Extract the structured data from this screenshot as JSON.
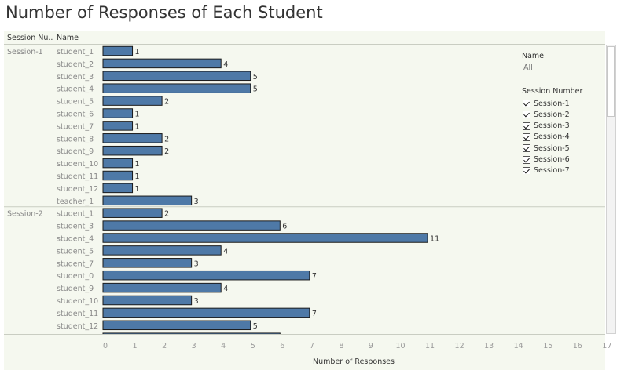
{
  "page": {
    "title": "Number of Responses of Each Student"
  },
  "headers": {
    "session": "Session Nu..",
    "name": "Name"
  },
  "filters": {
    "name_title": "Name",
    "name_value": "All",
    "session_title": "Session Number",
    "sessions": [
      {
        "label": "Session-1",
        "checked": true
      },
      {
        "label": "Session-2",
        "checked": true
      },
      {
        "label": "Session-3",
        "checked": true
      },
      {
        "label": "Session-4",
        "checked": true
      },
      {
        "label": "Session-5",
        "checked": true
      },
      {
        "label": "Session-6",
        "checked": true
      },
      {
        "label": "Session-7",
        "checked": true
      }
    ]
  },
  "chart_data": {
    "type": "bar",
    "orientation": "horizontal",
    "xlabel": "Number of Responses",
    "xlim": [
      0,
      17
    ],
    "xticks": [
      0,
      1,
      2,
      3,
      4,
      5,
      6,
      7,
      8,
      9,
      10,
      11,
      12,
      13,
      14,
      15,
      16,
      17
    ],
    "bar_color": "#4e79a7",
    "bar_outline_color": "#1a1a1a",
    "groups": [
      {
        "label": "Session-1",
        "rows": [
          {
            "name": "student_1",
            "value": 1
          },
          {
            "name": "student_2",
            "value": 4
          },
          {
            "name": "student_3",
            "value": 5
          },
          {
            "name": "student_4",
            "value": 5
          },
          {
            "name": "student_5",
            "value": 2
          },
          {
            "name": "student_6",
            "value": 1
          },
          {
            "name": "student_7",
            "value": 1
          },
          {
            "name": "student_8",
            "value": 2
          },
          {
            "name": "student_9",
            "value": 2
          },
          {
            "name": "student_10",
            "value": 1
          },
          {
            "name": "student_11",
            "value": 1
          },
          {
            "name": "student_12",
            "value": 1
          },
          {
            "name": "teacher_1",
            "value": 3
          }
        ]
      },
      {
        "label": "Session-2",
        "rows": [
          {
            "name": "student_1",
            "value": 2
          },
          {
            "name": "student_3",
            "value": 6
          },
          {
            "name": "student_4",
            "value": 11
          },
          {
            "name": "student_5",
            "value": 4
          },
          {
            "name": "student_7",
            "value": 3
          },
          {
            "name": "student_0",
            "value": 7
          },
          {
            "name": "student_9",
            "value": 4
          },
          {
            "name": "student_10",
            "value": 3
          },
          {
            "name": "student_11",
            "value": 7
          },
          {
            "name": "student_12",
            "value": 5
          }
        ],
        "partially_visible_next_value": 6
      }
    ]
  }
}
